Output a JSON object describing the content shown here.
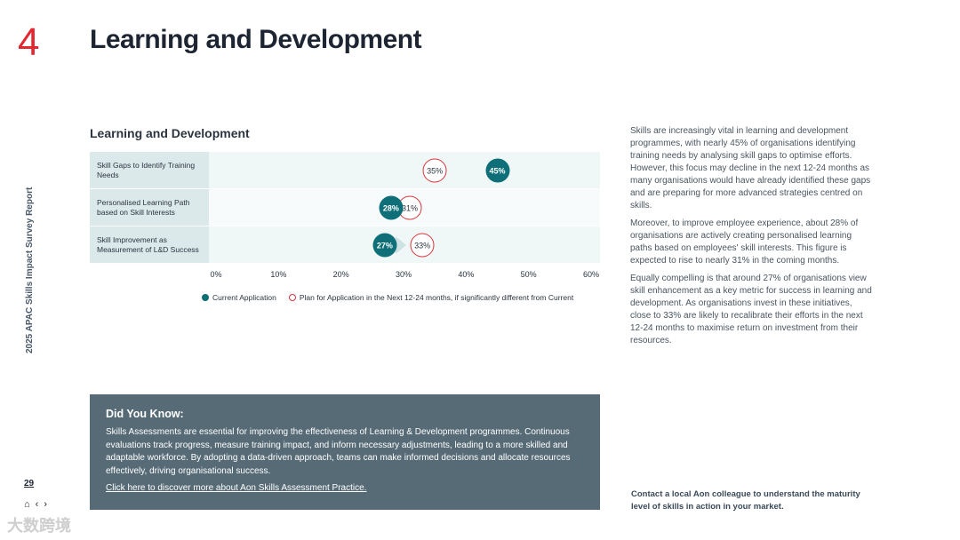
{
  "section_number": "4",
  "page_title": "Learning and Development",
  "side_label": "2025 APAC Skills Impact Survey Report",
  "page_number": "29",
  "nav": {
    "home": "⌂",
    "prev": "‹",
    "next": "›"
  },
  "watermark": "大数跨境",
  "chart_data": {
    "type": "scatter",
    "title": "Learning and Development",
    "categories": [
      "Skill Gaps to Identify Training Needs",
      "Personalised Learning Path based on Skill Interests",
      "Skill Improvement as Measurement of L&D Success"
    ],
    "series": [
      {
        "name": "Current Application",
        "values": [
          45,
          28,
          27
        ]
      },
      {
        "name": "Plan for Application in the Next 12-24 months, if significantly different from Current",
        "values": [
          35,
          31,
          33
        ]
      }
    ],
    "labels": {
      "current": [
        "45%",
        "28%",
        "27%"
      ],
      "plan": [
        "35%",
        "31%",
        "33%"
      ]
    },
    "xlim": [
      0,
      60
    ],
    "xticks": [
      "0%",
      "10%",
      "20%",
      "30%",
      "40%",
      "50%",
      "60%"
    ],
    "legend": [
      "Current Application",
      "Plan for Application in the Next 12-24 months, if significantly different from Current"
    ]
  },
  "body_paragraphs": [
    "Skills are increasingly vital in learning and development programmes, with nearly 45% of organisations identifying training needs by analysing skill gaps to optimise efforts. However, this focus may decline in the next 12-24 months as many organisations would have already identified these gaps and are preparing for more advanced strategies centred on skills.",
    "Moreover, to improve employee experience, about 28% of organisations are actively creating personalised learning paths based on employees' skill interests. This figure is expected to rise to nearly 31% in the coming months.",
    "Equally compelling is that around 27% of organisations view skill enhancement as a key metric for success in learning and development. As organisations invest in these initiatives, close to 33% are likely to recalibrate their efforts in the next 12-24 months to maximise return on investment from their resources."
  ],
  "did_you_know": {
    "heading": "Did You Know:",
    "text": "Skills Assessments are essential for improving the effectiveness of Learning & Development programmes. Continuous evaluations track progress, measure training impact, and inform necessary adjustments, leading to a more skilled and adaptable workforce. By adopting a data-driven approach, teams can make informed decisions and allocate resources effectively, driving organisational success.",
    "link": "Click here to discover more about Aon Skills Assessment Practice."
  },
  "contact_text": "Contact a local Aon colleague to understand the maturity level of skills in action in your market."
}
